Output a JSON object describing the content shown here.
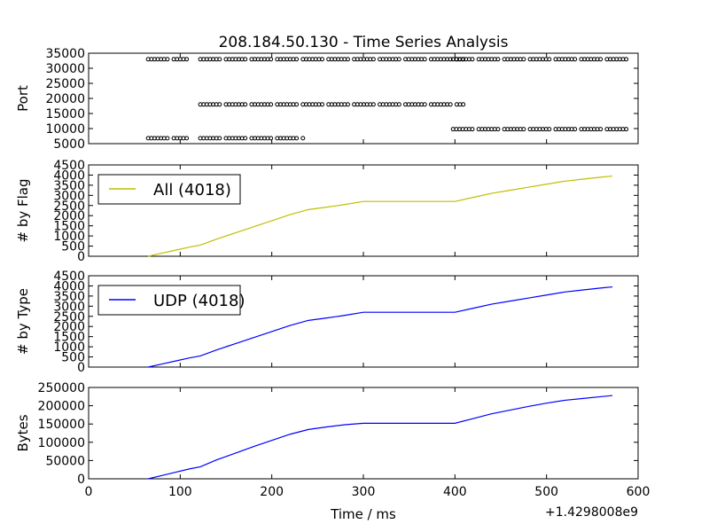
{
  "figure": {
    "title": "208.184.50.130 - Time Series Analysis",
    "x_offset_label": "+1.4298008e9"
  },
  "chart_data": [
    {
      "type": "scatter",
      "ylabel": "Port",
      "xlim": [
        0,
        600
      ],
      "ylim": [
        5000,
        35000
      ],
      "yticks": [
        5000,
        10000,
        15000,
        20000,
        25000,
        30000,
        35000
      ],
      "x_offset": 1429800800,
      "marker_color": "#000000",
      "series": [
        {
          "y": 33000,
          "segments": [
            [
              65,
              110
            ],
            [
              122,
              410
            ],
            [
              398,
              588
            ]
          ]
        },
        {
          "y": 18000,
          "segments": [
            [
              122,
              410
            ]
          ]
        },
        {
          "y": 6800,
          "segments": [
            [
              65,
              110
            ],
            [
              122,
              237
            ]
          ]
        },
        {
          "y": 9800,
          "segments": [
            [
              398,
              588
            ]
          ]
        }
      ]
    },
    {
      "type": "line",
      "ylabel": "# by Flag",
      "xlim": [
        0,
        600
      ],
      "ylim": [
        0,
        4500
      ],
      "yticks": [
        0,
        500,
        1000,
        1500,
        2000,
        2500,
        3000,
        3500,
        4000,
        4500
      ],
      "legend_position": "upper-left",
      "series": [
        {
          "name": "All (4018)",
          "color": "#bfbf00",
          "x": [
            65,
            80,
            95,
            110,
            122,
            140,
            160,
            180,
            200,
            220,
            240,
            260,
            280,
            300,
            400,
            420,
            440,
            460,
            480,
            500,
            520,
            540,
            560,
            572
          ],
          "y": [
            0,
            150,
            300,
            450,
            550,
            850,
            1150,
            1450,
            1750,
            2050,
            2300,
            2420,
            2550,
            2700,
            2700,
            2900,
            3100,
            3250,
            3400,
            3550,
            3700,
            3800,
            3900,
            3950
          ]
        }
      ]
    },
    {
      "type": "line",
      "ylabel": "# by Type",
      "xlim": [
        0,
        600
      ],
      "ylim": [
        0,
        4500
      ],
      "yticks": [
        0,
        500,
        1000,
        1500,
        2000,
        2500,
        3000,
        3500,
        4000,
        4500
      ],
      "legend_position": "upper-left",
      "series": [
        {
          "name": "UDP (4018)",
          "color": "#0000ff",
          "x": [
            65,
            80,
            95,
            110,
            122,
            140,
            160,
            180,
            200,
            220,
            240,
            260,
            280,
            300,
            400,
            420,
            440,
            460,
            480,
            500,
            520,
            540,
            560,
            572
          ],
          "y": [
            0,
            150,
            300,
            450,
            550,
            850,
            1150,
            1450,
            1750,
            2050,
            2300,
            2420,
            2550,
            2700,
            2700,
            2900,
            3100,
            3250,
            3400,
            3550,
            3700,
            3800,
            3900,
            3950
          ]
        }
      ]
    },
    {
      "type": "line",
      "xlabel": "Time / ms",
      "ylabel": "Bytes",
      "xlim": [
        0,
        600
      ],
      "ylim": [
        0,
        250000
      ],
      "xticks": [
        0,
        100,
        200,
        300,
        400,
        500,
        600
      ],
      "yticks": [
        0,
        50000,
        100000,
        150000,
        200000,
        250000
      ],
      "series": [
        {
          "color": "#0000ff",
          "x": [
            65,
            80,
            95,
            110,
            122,
            140,
            160,
            180,
            200,
            220,
            240,
            260,
            280,
            300,
            400,
            420,
            440,
            460,
            480,
            500,
            520,
            540,
            560,
            572
          ],
          "y": [
            0,
            9000,
            18000,
            27000,
            33000,
            52000,
            70000,
            88000,
            105000,
            122000,
            135000,
            142000,
            148000,
            152000,
            152000,
            165000,
            178000,
            188000,
            198000,
            207000,
            215000,
            220000,
            225000,
            228000
          ]
        }
      ]
    }
  ]
}
